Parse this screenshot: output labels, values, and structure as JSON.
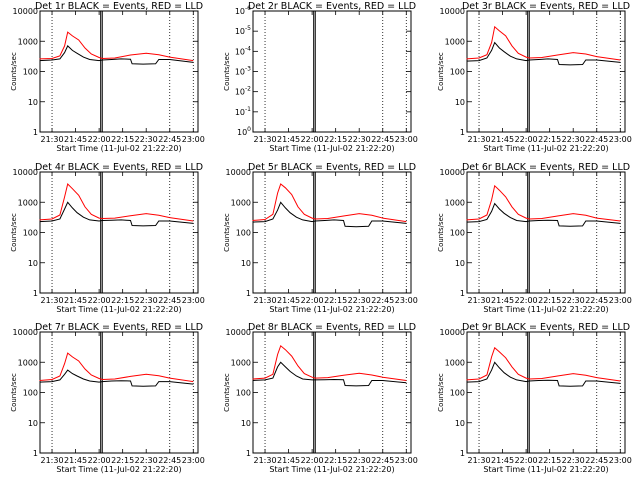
{
  "chart_data": [
    {
      "type": "line",
      "panel": "1r",
      "title": "Det 1r BLACK = Events, RED = LLD",
      "xlabel": "Start Time (11-Jul-02 21:22:20)",
      "ylabel": "Counts/sec",
      "yscale": "log",
      "ylim": [
        1,
        10000
      ],
      "yticks": [
        "1",
        "10",
        "100",
        "1000",
        "10000"
      ],
      "xlim": [
        "21:22:20",
        "23:03:00"
      ],
      "xticks": [
        "21:30",
        "21:45",
        "22:00",
        "22:15",
        "22:30",
        "22:45",
        "23:00"
      ],
      "markers": [
        "21:30",
        "22:01",
        "22:02",
        "22:45",
        "23:00"
      ],
      "series": [
        {
          "color": "#000000",
          "x": [
            "21:22",
            "21:30",
            "21:35",
            "21:38",
            "21:40",
            "21:43",
            "21:46",
            "21:50",
            "21:54",
            "22:00",
            "22:02",
            "22:08",
            "22:14",
            "22:20",
            "22:21",
            "22:28",
            "22:36",
            "22:38",
            "22:45",
            "23:00"
          ],
          "y": [
            230,
            240,
            260,
            420,
            700,
            500,
            400,
            300,
            250,
            230,
            240,
            250,
            260,
            255,
            180,
            175,
            180,
            250,
            250,
            200
          ]
        },
        {
          "color": "#ff0000",
          "x": [
            "21:22",
            "21:30",
            "21:35",
            "21:38",
            "21:40",
            "21:43",
            "21:47",
            "21:51",
            "21:55",
            "22:00",
            "22:02",
            "22:10",
            "22:20",
            "22:30",
            "22:38",
            "22:45",
            "23:00"
          ],
          "y": [
            260,
            270,
            330,
            700,
            2000,
            1500,
            1100,
            600,
            380,
            290,
            270,
            280,
            350,
            400,
            360,
            300,
            230
          ]
        }
      ]
    },
    {
      "type": "line",
      "panel": "2r",
      "title": "Det 2r BLACK = Events, RED = LLD",
      "xlabel": "Start Time (11-Jul-02 21:22:20)",
      "ylabel": "Counts/sec",
      "yscale": "log",
      "ylim": [
        1,
        1e-06
      ],
      "yticks": [
        "10^0",
        "10^-1",
        "10^-2",
        "10^-3",
        "10^-4",
        "10^-5",
        "10^-6"
      ],
      "ytick_labels": [
        {
          "base": "10",
          "exp": "0"
        },
        {
          "base": "10",
          "exp": "-1"
        },
        {
          "base": "10",
          "exp": "-2"
        },
        {
          "base": "10",
          "exp": "-3"
        },
        {
          "base": "10",
          "exp": "-4"
        },
        {
          "base": "10",
          "exp": "-5"
        },
        {
          "base": "10",
          "exp": "-6"
        }
      ],
      "xlim": [
        "21:22:20",
        "23:03:00"
      ],
      "xticks": [
        "21:30",
        "21:45",
        "22:00",
        "22:15",
        "22:30",
        "22:45",
        "23:00"
      ],
      "markers": [
        "21:30",
        "22:01",
        "22:02",
        "22:45",
        "23:00"
      ],
      "series": []
    },
    {
      "type": "line",
      "panel": "3r",
      "title": "Det 3r BLACK = Events, RED = LLD",
      "xlabel": "Start Time (11-Jul-02 21:22:20)",
      "ylabel": "Counts/sec",
      "yscale": "log",
      "ylim": [
        1,
        10000
      ],
      "yticks": [
        "1",
        "10",
        "100",
        "1000",
        "10000"
      ],
      "xlim": [
        "21:22:20",
        "23:03:00"
      ],
      "xticks": [
        "21:30",
        "21:45",
        "22:00",
        "22:15",
        "22:30",
        "22:45",
        "23:00"
      ],
      "markers": [
        "21:30",
        "22:01",
        "22:02",
        "22:45",
        "23:00"
      ],
      "series": [
        {
          "color": "#000000",
          "x": [
            "21:22",
            "21:30",
            "21:35",
            "21:38",
            "21:40",
            "21:43",
            "21:46",
            "21:50",
            "21:54",
            "22:00",
            "22:02",
            "22:08",
            "22:14",
            "22:20",
            "22:21",
            "22:28",
            "22:36",
            "22:38",
            "22:45",
            "23:00"
          ],
          "y": [
            220,
            230,
            280,
            500,
            900,
            600,
            450,
            320,
            260,
            230,
            240,
            250,
            260,
            250,
            170,
            165,
            170,
            240,
            240,
            200
          ]
        },
        {
          "color": "#ff0000",
          "x": [
            "21:22",
            "21:30",
            "21:35",
            "21:38",
            "21:40",
            "21:43",
            "21:47",
            "21:51",
            "21:55",
            "22:00",
            "22:02",
            "22:10",
            "22:20",
            "22:30",
            "22:38",
            "22:45",
            "23:00"
          ],
          "y": [
            260,
            280,
            360,
            900,
            3000,
            2200,
            1500,
            700,
            400,
            300,
            280,
            290,
            350,
            420,
            380,
            310,
            240
          ]
        }
      ]
    },
    {
      "type": "line",
      "panel": "4r",
      "title": "Det 4r BLACK = Events, RED = LLD",
      "xlabel": "Start Time (11-Jul-02 21:22:20)",
      "ylabel": "Counts/sec",
      "yscale": "log",
      "ylim": [
        1,
        10000
      ],
      "yticks": [
        "1",
        "10",
        "100",
        "1000",
        "10000"
      ],
      "xlim": [
        "21:22:20",
        "23:03:00"
      ],
      "xticks": [
        "21:30",
        "21:45",
        "22:00",
        "22:15",
        "22:30",
        "22:45",
        "23:00"
      ],
      "markers": [
        "21:30",
        "22:01",
        "22:02",
        "22:45",
        "23:00"
      ],
      "series": [
        {
          "color": "#000000",
          "x": [
            "21:22",
            "21:30",
            "21:35",
            "21:38",
            "21:40",
            "21:43",
            "21:46",
            "21:50",
            "21:54",
            "22:00",
            "22:02",
            "22:08",
            "22:14",
            "22:20",
            "22:21",
            "22:28",
            "22:36",
            "22:38",
            "22:45",
            "23:00"
          ],
          "y": [
            230,
            240,
            280,
            600,
            1000,
            650,
            450,
            320,
            260,
            240,
            250,
            255,
            260,
            250,
            170,
            165,
            170,
            240,
            240,
            200
          ]
        },
        {
          "color": "#ff0000",
          "x": [
            "21:22",
            "21:30",
            "21:35",
            "21:38",
            "21:40",
            "21:43",
            "21:47",
            "21:51",
            "21:55",
            "22:00",
            "22:02",
            "22:10",
            "22:20",
            "22:30",
            "22:38",
            "22:45",
            "23:00"
          ],
          "y": [
            260,
            280,
            380,
            1500,
            4000,
            2800,
            1700,
            700,
            400,
            300,
            290,
            300,
            360,
            420,
            370,
            310,
            240
          ]
        }
      ]
    },
    {
      "type": "line",
      "panel": "5r",
      "title": "Det 5r BLACK = Events, RED = LLD",
      "xlabel": "Start Time (11-Jul-02 21:22:20)",
      "ylabel": "Counts/sec",
      "yscale": "log",
      "ylim": [
        1,
        10000
      ],
      "yticks": [
        "1",
        "10",
        "100",
        "1000",
        "10000"
      ],
      "xlim": [
        "21:22:20",
        "23:03:00"
      ],
      "xticks": [
        "21:30",
        "21:45",
        "22:00",
        "22:15",
        "22:30",
        "22:45",
        "23:00"
      ],
      "markers": [
        "21:30",
        "22:01",
        "22:02",
        "22:45",
        "23:00"
      ],
      "series": [
        {
          "color": "#000000",
          "x": [
            "21:22",
            "21:30",
            "21:35",
            "21:38",
            "21:40",
            "21:43",
            "21:46",
            "21:50",
            "21:54",
            "22:00",
            "22:02",
            "22:08",
            "22:14",
            "22:20",
            "22:21",
            "22:28",
            "22:36",
            "22:38",
            "22:45",
            "23:00"
          ],
          "y": [
            220,
            230,
            280,
            550,
            1000,
            650,
            450,
            320,
            260,
            230,
            240,
            250,
            260,
            250,
            160,
            155,
            160,
            240,
            240,
            200
          ]
        },
        {
          "color": "#ff0000",
          "x": [
            "21:22",
            "21:30",
            "21:35",
            "21:38",
            "21:40",
            "21:43",
            "21:47",
            "21:51",
            "21:55",
            "22:00",
            "22:02",
            "22:10",
            "22:20",
            "22:30",
            "22:38",
            "22:45",
            "23:00"
          ],
          "y": [
            250,
            270,
            400,
            2000,
            4000,
            3000,
            1800,
            700,
            400,
            300,
            280,
            290,
            350,
            420,
            370,
            300,
            230
          ]
        }
      ]
    },
    {
      "type": "line",
      "panel": "6r",
      "title": "Det 6r BLACK = Events, RED = LLD",
      "xlabel": "Start Time (11-Jul-02 21:22:20)",
      "ylabel": "Counts/sec",
      "yscale": "log",
      "ylim": [
        1,
        10000
      ],
      "yticks": [
        "1",
        "10",
        "100",
        "1000",
        "10000"
      ],
      "xlim": [
        "21:22:20",
        "23:03:00"
      ],
      "xticks": [
        "21:30",
        "21:45",
        "22:00",
        "22:15",
        "22:30",
        "22:45",
        "23:00"
      ],
      "markers": [
        "21:30",
        "22:01",
        "22:02",
        "22:45",
        "23:00"
      ],
      "series": [
        {
          "color": "#000000",
          "x": [
            "21:22",
            "21:30",
            "21:35",
            "21:38",
            "21:40",
            "21:43",
            "21:46",
            "21:50",
            "21:54",
            "22:00",
            "22:02",
            "22:08",
            "22:14",
            "22:20",
            "22:21",
            "22:28",
            "22:36",
            "22:38",
            "22:45",
            "23:00"
          ],
          "y": [
            220,
            230,
            270,
            500,
            900,
            600,
            430,
            310,
            250,
            230,
            240,
            250,
            255,
            250,
            165,
            160,
            165,
            240,
            240,
            200
          ]
        },
        {
          "color": "#ff0000",
          "x": [
            "21:22",
            "21:30",
            "21:35",
            "21:38",
            "21:40",
            "21:43",
            "21:47",
            "21:51",
            "21:55",
            "22:00",
            "22:02",
            "22:10",
            "22:20",
            "22:30",
            "22:38",
            "22:45",
            "23:00"
          ],
          "y": [
            260,
            280,
            380,
            1200,
            3500,
            2500,
            1500,
            700,
            400,
            300,
            280,
            290,
            350,
            420,
            370,
            300,
            240
          ]
        }
      ]
    },
    {
      "type": "line",
      "panel": "7r",
      "title": "Det 7r BLACK = Events, RED = LLD",
      "xlabel": "Start Time (11-Jul-02 21:22:20)",
      "ylabel": "Counts/sec",
      "yscale": "log",
      "ylim": [
        1,
        10000
      ],
      "yticks": [
        "1",
        "10",
        "100",
        "1000",
        "10000"
      ],
      "xlim": [
        "21:22:20",
        "23:03:00"
      ],
      "xticks": [
        "21:30",
        "21:45",
        "22:00",
        "22:15",
        "22:30",
        "22:45",
        "23:00"
      ],
      "markers": [
        "21:30",
        "22:01",
        "22:02",
        "22:45",
        "23:00"
      ],
      "series": [
        {
          "color": "#000000",
          "x": [
            "21:22",
            "21:30",
            "21:35",
            "21:38",
            "21:40",
            "21:43",
            "21:46",
            "21:50",
            "21:54",
            "22:00",
            "22:02",
            "22:08",
            "22:14",
            "22:20",
            "22:21",
            "22:28",
            "22:36",
            "22:38",
            "22:45",
            "23:00"
          ],
          "y": [
            220,
            230,
            260,
            400,
            550,
            420,
            350,
            280,
            240,
            220,
            230,
            240,
            245,
            240,
            165,
            160,
            165,
            230,
            230,
            190
          ]
        },
        {
          "color": "#ff0000",
          "x": [
            "21:22",
            "21:30",
            "21:35",
            "21:38",
            "21:40",
            "21:43",
            "21:47",
            "21:51",
            "21:55",
            "22:00",
            "22:02",
            "22:10",
            "22:20",
            "22:30",
            "22:38",
            "22:45",
            "23:00"
          ],
          "y": [
            250,
            270,
            350,
            900,
            2000,
            1500,
            1100,
            600,
            380,
            290,
            270,
            280,
            340,
            400,
            360,
            300,
            230
          ]
        }
      ]
    },
    {
      "type": "line",
      "panel": "8r",
      "title": "Det 8r BLACK = Events, RED = LLD",
      "xlabel": "Start Time (11-Jul-02 21:22:20)",
      "ylabel": "Counts/sec",
      "yscale": "log",
      "ylim": [
        1,
        10000
      ],
      "yticks": [
        "1",
        "10",
        "100",
        "1000",
        "10000"
      ],
      "xlim": [
        "21:22:20",
        "23:03:00"
      ],
      "xticks": [
        "21:30",
        "21:45",
        "22:00",
        "22:15",
        "22:30",
        "22:45",
        "23:00"
      ],
      "markers": [
        "21:30",
        "22:01",
        "22:02",
        "22:45",
        "23:00"
      ],
      "series": [
        {
          "color": "#000000",
          "x": [
            "21:22",
            "21:30",
            "21:35",
            "21:38",
            "21:40",
            "21:43",
            "21:46",
            "21:50",
            "21:54",
            "22:00",
            "22:02",
            "22:08",
            "22:14",
            "22:20",
            "22:21",
            "22:28",
            "22:36",
            "22:38",
            "22:45",
            "23:00"
          ],
          "y": [
            250,
            260,
            300,
            700,
            1000,
            700,
            500,
            350,
            280,
            260,
            260,
            265,
            270,
            265,
            170,
            165,
            170,
            250,
            250,
            210
          ]
        },
        {
          "color": "#ff0000",
          "x": [
            "21:22",
            "21:30",
            "21:35",
            "21:38",
            "21:40",
            "21:43",
            "21:47",
            "21:51",
            "21:55",
            "22:00",
            "22:02",
            "22:10",
            "22:20",
            "22:30",
            "22:38",
            "22:45",
            "23:00"
          ],
          "y": [
            280,
            300,
            400,
            1800,
            3500,
            2600,
            1600,
            750,
            420,
            320,
            300,
            310,
            370,
            430,
            380,
            320,
            250
          ]
        }
      ]
    },
    {
      "type": "line",
      "panel": "9r",
      "title": "Det 9r BLACK = Events, RED = LLD",
      "xlabel": "Start Time (11-Jul-02 21:22:20)",
      "ylabel": "Counts/sec",
      "yscale": "log",
      "ylim": [
        1,
        10000
      ],
      "yticks": [
        "1",
        "10",
        "100",
        "1000",
        "10000"
      ],
      "xlim": [
        "21:22:20",
        "23:03:00"
      ],
      "xticks": [
        "21:30",
        "21:45",
        "22:00",
        "22:15",
        "22:30",
        "22:45",
        "23:00"
      ],
      "markers": [
        "21:30",
        "22:01",
        "22:02",
        "22:45",
        "23:00"
      ],
      "series": [
        {
          "color": "#000000",
          "x": [
            "21:22",
            "21:30",
            "21:35",
            "21:38",
            "21:40",
            "21:43",
            "21:46",
            "21:50",
            "21:54",
            "22:00",
            "22:02",
            "22:08",
            "22:14",
            "22:20",
            "22:21",
            "22:28",
            "22:36",
            "22:38",
            "22:45",
            "23:00"
          ],
          "y": [
            220,
            230,
            280,
            550,
            1000,
            650,
            450,
            320,
            260,
            230,
            240,
            250,
            255,
            250,
            165,
            160,
            165,
            240,
            240,
            200
          ]
        },
        {
          "color": "#ff0000",
          "x": [
            "21:22",
            "21:30",
            "21:35",
            "21:38",
            "21:40",
            "21:43",
            "21:47",
            "21:51",
            "21:55",
            "22:00",
            "22:02",
            "22:10",
            "22:20",
            "22:30",
            "22:38",
            "22:45",
            "23:00"
          ],
          "y": [
            260,
            280,
            380,
            1500,
            3000,
            2200,
            1400,
            700,
            400,
            300,
            280,
            290,
            350,
            420,
            370,
            310,
            240
          ]
        }
      ]
    }
  ]
}
